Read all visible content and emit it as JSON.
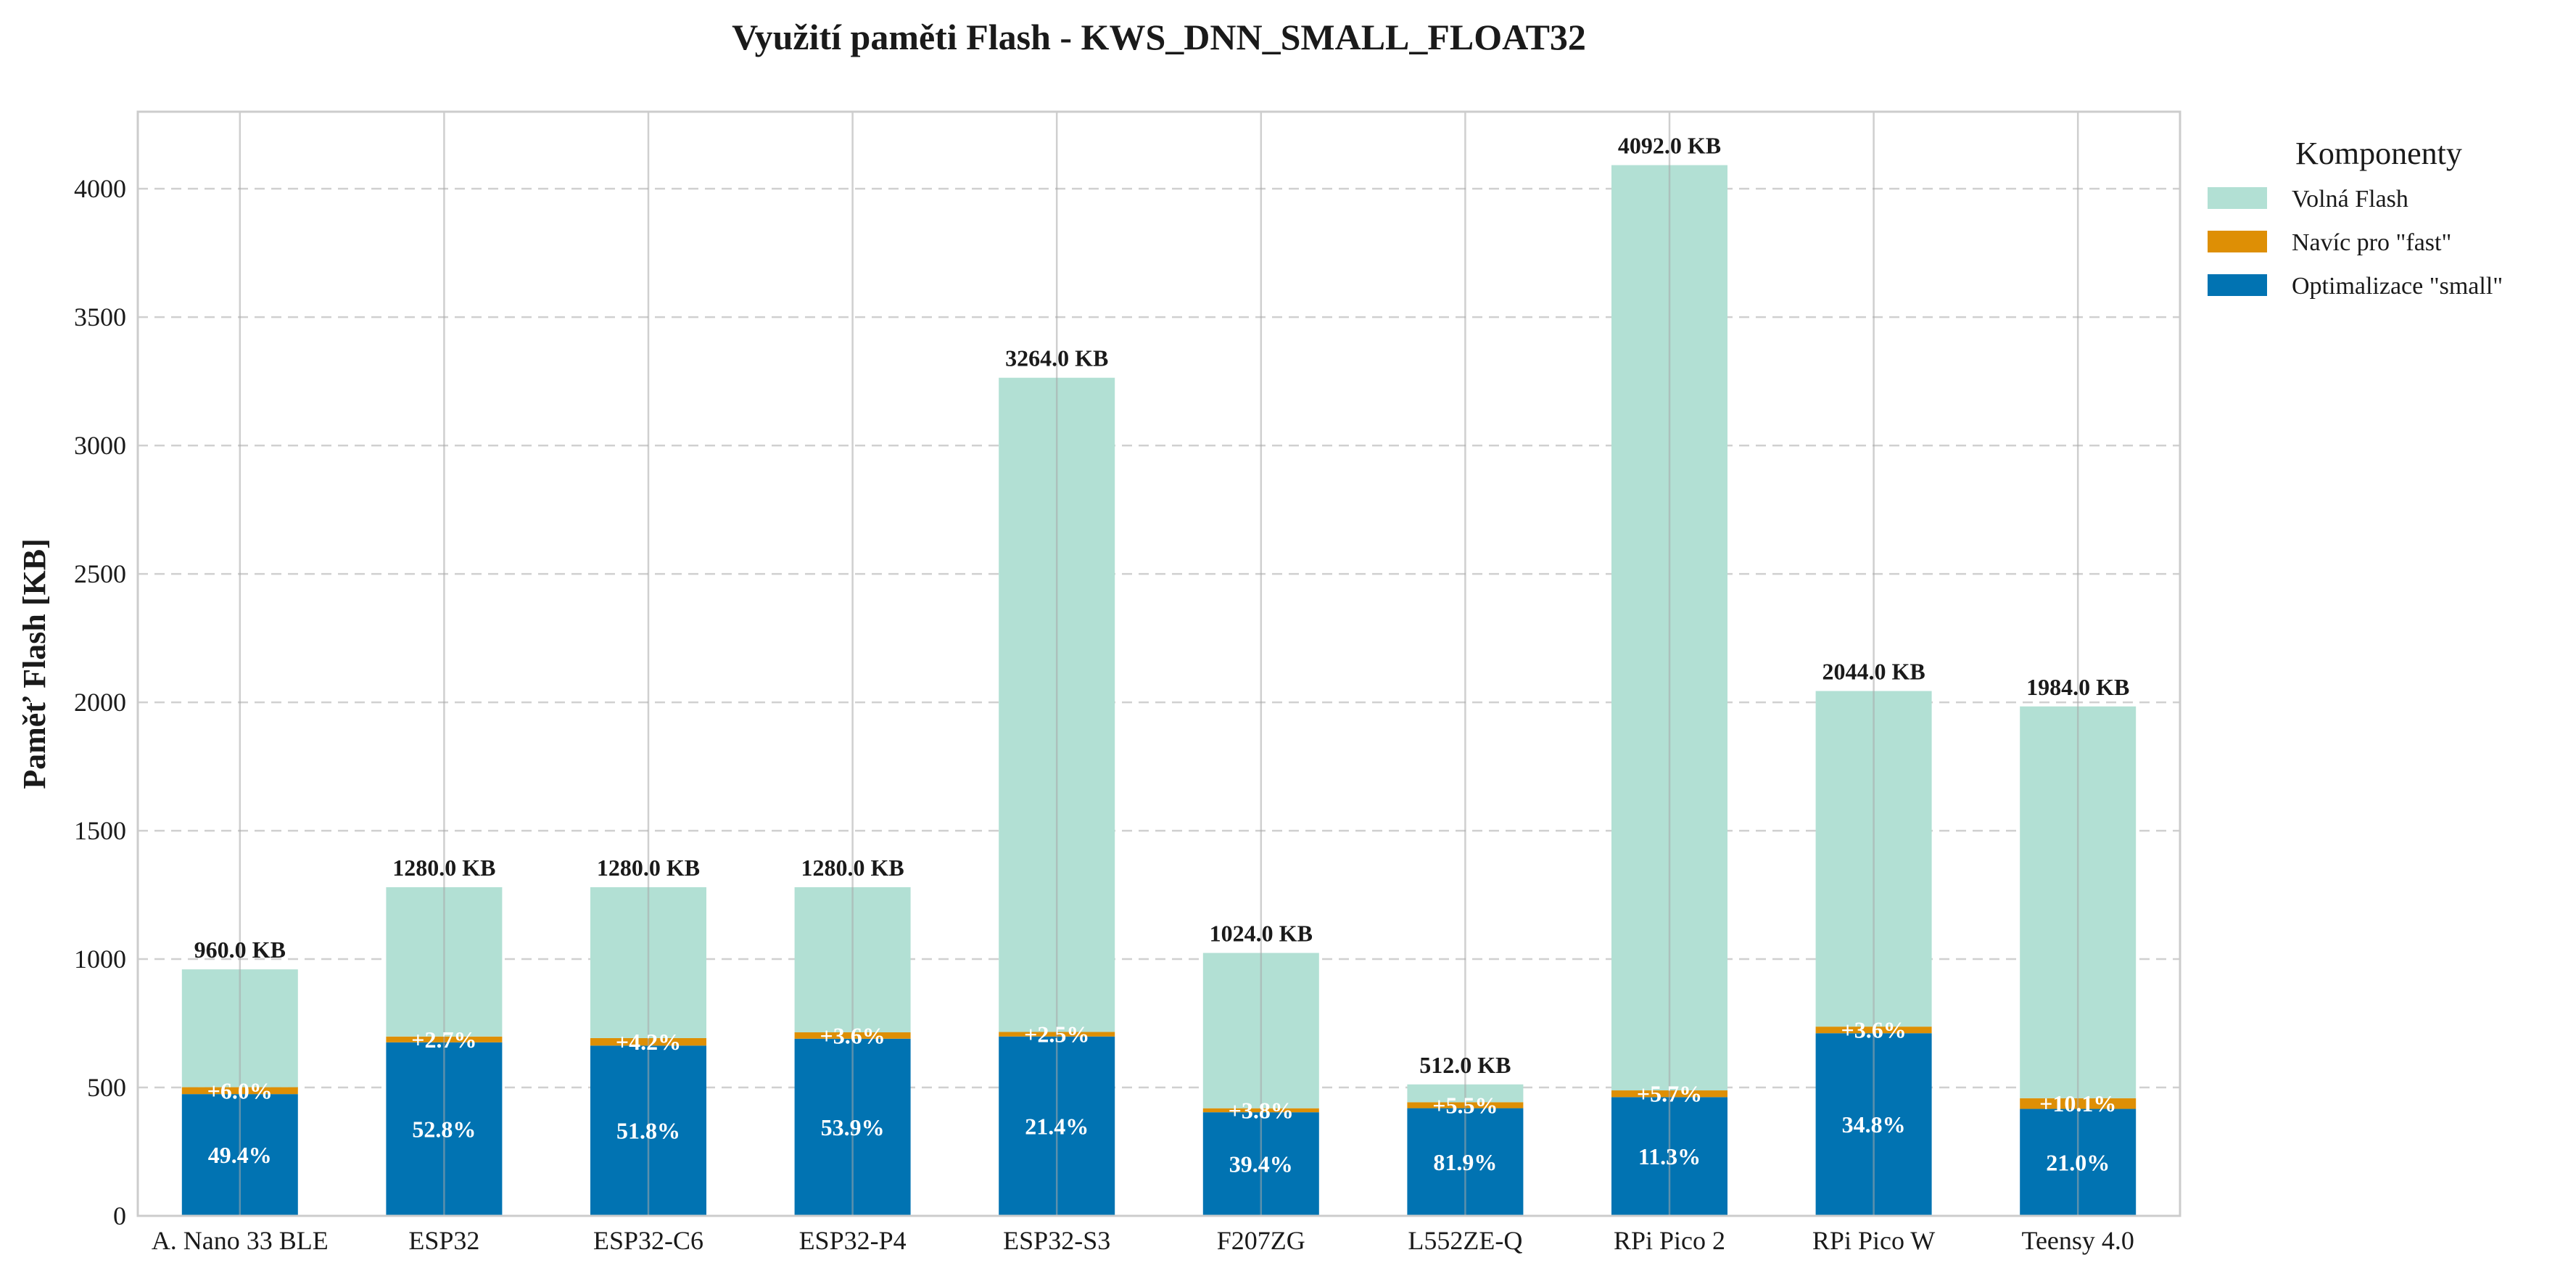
{
  "chart_data": {
    "type": "bar",
    "stacked": true,
    "title": "Využití paměti Flash - KWS_DNN_SMALL_FLOAT32",
    "xlabel": "",
    "ylabel": "Paměť Flash [KB]",
    "ylim": [
      0,
      4300
    ],
    "yticks": [
      0,
      500,
      1000,
      1500,
      2000,
      2500,
      3000,
      3500,
      4000
    ],
    "grid": true,
    "categories": [
      "A. Nano 33 BLE",
      "ESP32",
      "ESP32-C6",
      "ESP32-P4",
      "ESP32-S3",
      "F207ZG",
      "L552ZE-Q",
      "RPi Pico 2",
      "RPi Pico W",
      "Teensy 4.0"
    ],
    "series": [
      {
        "name": "Optimalizace \"small\"",
        "color": "#0173b2",
        "values": [
          474.2,
          675.8,
          663.0,
          689.9,
          698.5,
          403.5,
          419.3,
          462.4,
          711.3,
          416.6
        ]
      },
      {
        "name": "Navíc pro \"fast\"",
        "color": "#de8f05",
        "values": [
          27.0,
          22.6,
          29.3,
          25.0,
          17.8,
          15.5,
          23.4,
          26.3,
          25.7,
          41.6
        ]
      },
      {
        "name": "Volná Flash",
        "color": "#b2e0d4",
        "values": [
          458.8,
          581.6,
          587.7,
          565.1,
          2547.7,
          605.0,
          69.3,
          3603.3,
          1307.0,
          1525.8
        ]
      }
    ],
    "totals": [
      960.0,
      1280.0,
      1280.0,
      1280.0,
      3264.0,
      1024.0,
      512.0,
      4092.0,
      2044.0,
      1984.0
    ],
    "total_labels": [
      "960.0 KB",
      "1280.0 KB",
      "1280.0 KB",
      "1280.0 KB",
      "3264.0 KB",
      "1024.0 KB",
      "512.0 KB",
      "4092.0 KB",
      "2044.0 KB",
      "1984.0 KB"
    ],
    "small_labels": [
      "49.4%",
      "52.8%",
      "51.8%",
      "53.9%",
      "21.4%",
      "39.4%",
      "81.9%",
      "11.3%",
      "34.8%",
      "21.0%"
    ],
    "fast_labels": [
      "+6.0%",
      "+2.7%",
      "+4.2%",
      "+3.6%",
      "+2.5%",
      "+3.8%",
      "+5.5%",
      "+5.7%",
      "+3.6%",
      "+10.1%"
    ],
    "legend": {
      "title": "Komponenty",
      "placement": "outside-right-top",
      "entries": [
        {
          "label": "Volná Flash",
          "color": "#b2e0d4"
        },
        {
          "label": "Navíc pro \"fast\"",
          "color": "#de8f05"
        },
        {
          "label": "Optimalizace \"small\"",
          "color": "#0173b2"
        }
      ]
    }
  }
}
